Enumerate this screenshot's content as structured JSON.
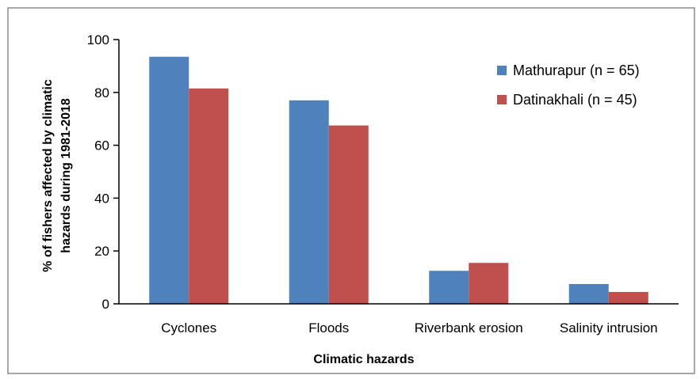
{
  "chart_data": {
    "type": "bar",
    "categories": [
      "Cyclones",
      "Floods",
      "Riverbank erosion",
      "Salinity intrusion"
    ],
    "series": [
      {
        "name": "Mathurapur (n = 65)",
        "values": [
          93.5,
          77,
          12.5,
          7.5
        ],
        "color": "#4f81bd"
      },
      {
        "name": "Datinakhali (n = 45)",
        "values": [
          81.5,
          67.5,
          15.5,
          4.5
        ],
        "color": "#c0504d"
      }
    ],
    "title": "",
    "xlabel": "Climatic hazards",
    "ylabel_lines": [
      "% of  fishers affected by climatic",
      "hazards during 1981-2018"
    ],
    "ylim": [
      0,
      100
    ],
    "yticks": [
      "0",
      "20",
      "40",
      "60",
      "80",
      "100"
    ],
    "ytick_values": [
      0,
      20,
      40,
      60,
      80,
      100
    ],
    "legend_position": "top-right",
    "grid": false
  }
}
